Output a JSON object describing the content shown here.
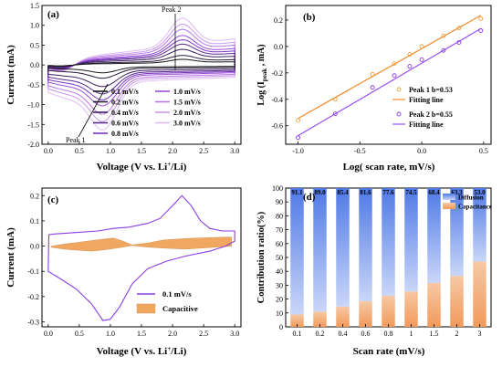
{
  "chart_data": [
    {
      "panel": "(a)",
      "type": "line",
      "xlabel": "Voltage (V vs. Li",
      "xlabel_sup": "+",
      "xlabel_end": "/Li)",
      "ylabel": "Current (mA)",
      "xlim": [
        -0.1,
        3.1
      ],
      "ylim": [
        -2.0,
        1.5
      ],
      "xticks": [
        "0.0",
        "0.5",
        "1.0",
        "1.5",
        "2.0",
        "2.5",
        "3.0"
      ],
      "yticks": [
        "-2.0",
        "-1.5",
        "-1.0",
        "-0.5",
        "0.0",
        "0.5",
        "1.0",
        "1.5"
      ],
      "annotations": [
        "Peak 1",
        "Peak 2"
      ],
      "legend": "bottom-center",
      "series": [
        {
          "name": "0.1 mV/s",
          "color": "#1a1a1a",
          "scale": 0.13
        },
        {
          "name": "0.2 mV/s",
          "color": "#2b1a3a",
          "scale": 0.22
        },
        {
          "name": "0.4 mV/s",
          "color": "#3e1f63",
          "scale": 0.36
        },
        {
          "name": "0.6 mV/s",
          "color": "#5a2a8f",
          "scale": 0.48
        },
        {
          "name": "0.8 mV/s",
          "color": "#7a35c0",
          "scale": 0.58
        },
        {
          "name": "1.0 mV/s",
          "color": "#9a4fd6",
          "scale": 0.68
        },
        {
          "name": "1.5 mV/s",
          "color": "#b877e2",
          "scale": 0.82
        },
        {
          "name": "2.0 mV/s",
          "color": "#cc99ea",
          "scale": 0.94
        },
        {
          "name": "3.0 mV/s",
          "color": "#dfbdf1",
          "scale": 1.08
        }
      ]
    },
    {
      "panel": "(b)",
      "type": "scatter",
      "xlabel": "Log( scan rate, mV/s)",
      "ylabel": "Log (I",
      "ylabel_sub": "peak",
      "ylabel_end": " , mA)",
      "xlim": [
        -1.1,
        0.56
      ],
      "ylim": [
        -0.74,
        0.31
      ],
      "xticks": [
        "-1.0",
        "-0.5",
        "0.0",
        "0.5"
      ],
      "yticks": [
        "-0.6",
        "-0.4",
        "-0.2",
        "0.0",
        "0.2"
      ],
      "x": [
        -1.0,
        -0.699,
        -0.398,
        -0.222,
        -0.097,
        0.0,
        0.176,
        0.301,
        0.477
      ],
      "series": [
        {
          "name": "Peak 1  b=0.53",
          "color": "#f0a040",
          "marker": "circle",
          "values": [
            -0.56,
            -0.4,
            -0.21,
            -0.13,
            -0.06,
            0.0,
            0.08,
            0.14,
            0.21
          ],
          "fit": [
            -0.545,
            0.235
          ],
          "fit_name": "Fitting line",
          "fit_color": "#f08a2a"
        },
        {
          "name": "Peak 2  b=0.55",
          "color": "#8a3ee0",
          "marker": "circle",
          "values": [
            -0.69,
            -0.51,
            -0.31,
            -0.22,
            -0.15,
            -0.1,
            -0.03,
            0.03,
            0.12
          ],
          "fit": [
            -0.675,
            0.135
          ],
          "fit_name": "Fitting line",
          "fit_color": "#9a4ff0"
        }
      ],
      "legend": "bottom-right"
    },
    {
      "panel": "(c)",
      "type": "line",
      "xlabel": "Voltage (V vs. Li",
      "xlabel_sup": "+",
      "xlabel_end": "/Li)",
      "ylabel": "Current (mA)",
      "xlim": [
        -0.1,
        3.1
      ],
      "ylim": [
        -0.32,
        0.23
      ],
      "xticks": [
        "0.0",
        "0.5",
        "1.0",
        "1.5",
        "2.0",
        "2.5",
        "3.0"
      ],
      "yticks": [
        "-0.3",
        "-0.2",
        "-0.1",
        "0.0",
        "0.1",
        "0.2"
      ],
      "series": [
        {
          "name": "0.1 mV/s",
          "color": "#8a3ee0",
          "points": [
            [
              3.0,
              0.06
            ],
            [
              2.8,
              0.06
            ],
            [
              2.6,
              0.07
            ],
            [
              2.45,
              0.1
            ],
            [
              2.3,
              0.16
            ],
            [
              2.15,
              0.2
            ],
            [
              2.0,
              0.16
            ],
            [
              1.8,
              0.11
            ],
            [
              1.6,
              0.09
            ],
            [
              1.3,
              0.075
            ],
            [
              1.05,
              0.07
            ],
            [
              0.8,
              0.06
            ],
            [
              0.5,
              0.055
            ],
            [
              0.1,
              0.048
            ],
            [
              0.01,
              0.045
            ],
            [
              0.0,
              -0.1
            ],
            [
              0.2,
              -0.13
            ],
            [
              0.45,
              -0.17
            ],
            [
              0.7,
              -0.23
            ],
            [
              0.88,
              -0.295
            ],
            [
              1.0,
              -0.29
            ],
            [
              1.15,
              -0.24
            ],
            [
              1.35,
              -0.15
            ],
            [
              1.6,
              -0.09
            ],
            [
              1.9,
              -0.06
            ],
            [
              2.2,
              -0.04
            ],
            [
              2.6,
              -0.02
            ],
            [
              2.85,
              0.0
            ],
            [
              3.0,
              0.02
            ],
            [
              3.0,
              0.06
            ]
          ]
        },
        {
          "name": "Capacitive",
          "color": "#f0a860",
          "type": "area",
          "upper": [
            [
              0.05,
              0.0
            ],
            [
              0.25,
              0.008
            ],
            [
              0.45,
              0.014
            ],
            [
              0.7,
              0.022
            ],
            [
              0.9,
              0.028
            ],
            [
              1.05,
              0.032
            ],
            [
              1.2,
              0.02
            ],
            [
              1.35,
              0.005
            ],
            [
              1.6,
              0.012
            ],
            [
              1.85,
              0.024
            ],
            [
              2.2,
              0.03
            ],
            [
              2.6,
              0.034
            ],
            [
              2.95,
              0.036
            ]
          ],
          "lower": [
            [
              0.05,
              -0.005
            ],
            [
              0.25,
              -0.012
            ],
            [
              0.45,
              -0.016
            ],
            [
              0.7,
              -0.02
            ],
            [
              0.9,
              -0.015
            ],
            [
              1.05,
              -0.01
            ],
            [
              1.2,
              -0.004
            ],
            [
              1.35,
              0.002
            ],
            [
              1.6,
              -0.004
            ],
            [
              1.85,
              -0.008
            ],
            [
              2.2,
              -0.012
            ],
            [
              2.6,
              -0.006
            ],
            [
              2.95,
              0.0
            ]
          ]
        }
      ],
      "legend": "bottom-right"
    },
    {
      "panel": "(d)",
      "type": "bar",
      "xlabel": "Scan rate (mV/s)",
      "ylabel": "Contribution ratio(%)",
      "ylim": [
        0,
        100
      ],
      "yticks": [
        "0",
        "10",
        "20",
        "30",
        "40",
        "50",
        "60",
        "70",
        "80",
        "90",
        "100"
      ],
      "categories": [
        "0.1",
        "0.2",
        "0.4",
        "0.6",
        "0.8",
        "1",
        "1.5",
        "2",
        "3"
      ],
      "series": [
        {
          "name": "Diffusion",
          "color": "#5b86e8",
          "values": [
            91.1,
            89.0,
            85.4,
            81.6,
            77.6,
            74.5,
            68.4,
            63.3,
            53.0
          ]
        },
        {
          "name": "Capacitance",
          "color": "#f4a46a",
          "values": [
            8.9,
            11.0,
            14.6,
            18.4,
            22.4,
            25.5,
            31.6,
            36.7,
            47.0
          ]
        }
      ],
      "labels": [
        "91.1",
        "89.0",
        "85.4",
        "81.6",
        "77.6",
        "74.5",
        "68.4",
        "63.3",
        "53.0"
      ],
      "legend": "top-right"
    }
  ]
}
